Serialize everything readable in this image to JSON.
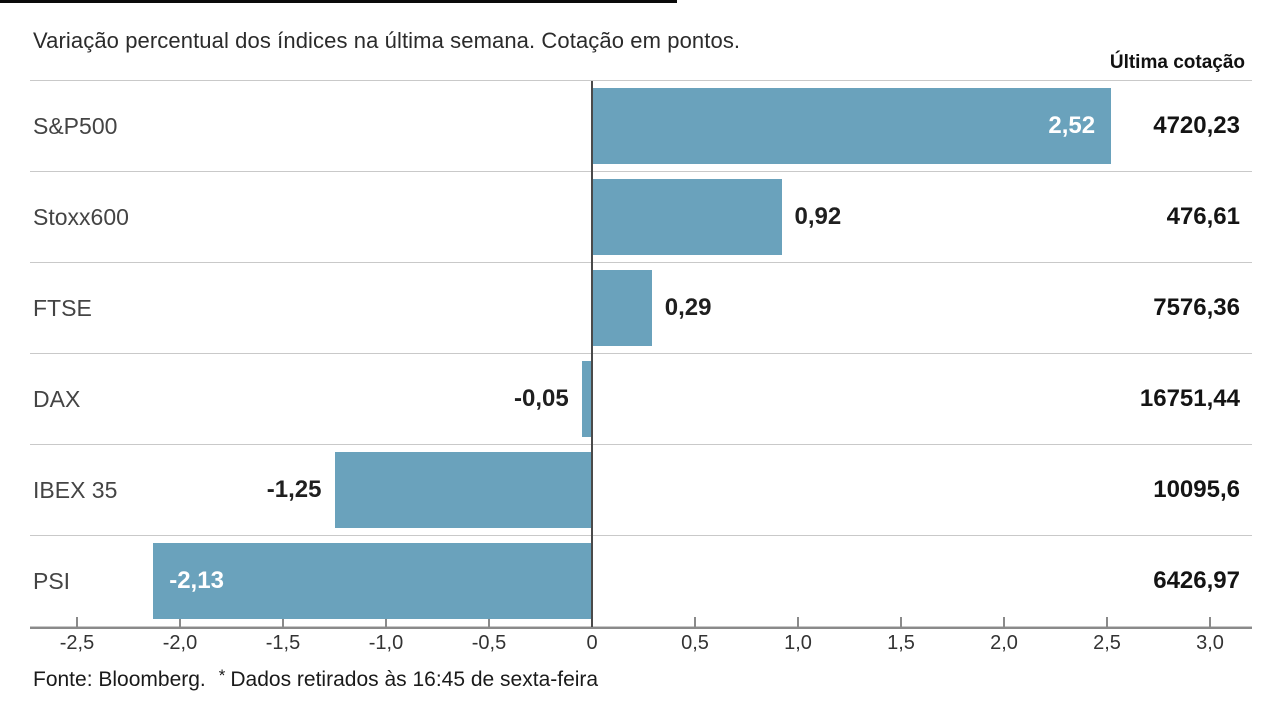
{
  "title": "Variação percentual dos índices na última semana. Cotação em pontos.",
  "column_header": "Última cotação",
  "rows": [
    {
      "label": "S&P500",
      "variation": "2,52",
      "value": 2.52,
      "quote": "4720,23",
      "label_placement": "inside"
    },
    {
      "label": "Stoxx600",
      "variation": "0,92",
      "value": 0.92,
      "quote": "476,61",
      "label_placement": "outside"
    },
    {
      "label": "FTSE",
      "variation": "0,29",
      "value": 0.29,
      "quote": "7576,36",
      "label_placement": "outside"
    },
    {
      "label": "DAX",
      "variation": "-0,05",
      "value": -0.05,
      "quote": "16751,44",
      "label_placement": "outside"
    },
    {
      "label": "IBEX 35",
      "variation": "-1,25",
      "value": -1.25,
      "quote": "10095,6",
      "label_placement": "outside"
    },
    {
      "label": "PSI",
      "variation": "-2,13",
      "value": -2.13,
      "quote": "6426,97",
      "label_placement": "inside"
    }
  ],
  "axis": {
    "ticks": [
      {
        "v": -2.5,
        "label": "-2,5"
      },
      {
        "v": -2.0,
        "label": "-2,0"
      },
      {
        "v": -1.5,
        "label": "-1,5"
      },
      {
        "v": -1.0,
        "label": "-1,0"
      },
      {
        "v": -0.5,
        "label": "-0,5"
      },
      {
        "v": 0,
        "label": "0"
      },
      {
        "v": 0.5,
        "label": "0,5"
      },
      {
        "v": 1.0,
        "label": "1,0"
      },
      {
        "v": 1.5,
        "label": "1,5"
      },
      {
        "v": 2.0,
        "label": "2,0"
      },
      {
        "v": 2.5,
        "label": "2,5"
      },
      {
        "v": 3.0,
        "label": "3,0"
      }
    ]
  },
  "footer": {
    "source": "Fonte: Bloomberg.",
    "asterisk": "*",
    "note": "Dados retirados às 16:45 de sexta-feira"
  },
  "colors": {
    "bar_blue": "#6aa2bc",
    "zero_line": "#4a4a4a",
    "axis_line": "#8a8a8a",
    "separator": "#c9c9c9"
  },
  "chart_data": {
    "type": "bar",
    "orientation": "horizontal",
    "title": "Variação percentual dos índices na última semana. Cotação em pontos.",
    "categories": [
      "S&P500",
      "Stoxx600",
      "FTSE",
      "DAX",
      "IBEX 35",
      "PSI"
    ],
    "series": [
      {
        "name": "Variação percentual (%)",
        "values": [
          2.52,
          0.92,
          0.29,
          -0.05,
          -1.25,
          -2.13
        ]
      },
      {
        "name": "Última cotação (pontos)",
        "values": [
          4720.23,
          476.61,
          7576.36,
          16751.44,
          10095.6,
          6426.97
        ]
      }
    ],
    "xlim": [
      -2.5,
      3.0
    ],
    "xticks": [
      -2.5,
      -2.0,
      -1.5,
      -1.0,
      -0.5,
      0,
      0.5,
      1.0,
      1.5,
      2.0,
      2.5,
      3.0
    ],
    "grid": false,
    "legend": false,
    "bar_color": "#6aa2bc",
    "value_labels": [
      "2,52",
      "0,92",
      "0,29",
      "-0,05",
      "-1,25",
      "-2,13"
    ],
    "source": "Fonte: Bloomberg. * Dados retirados às 16:45 de sexta-feira"
  }
}
